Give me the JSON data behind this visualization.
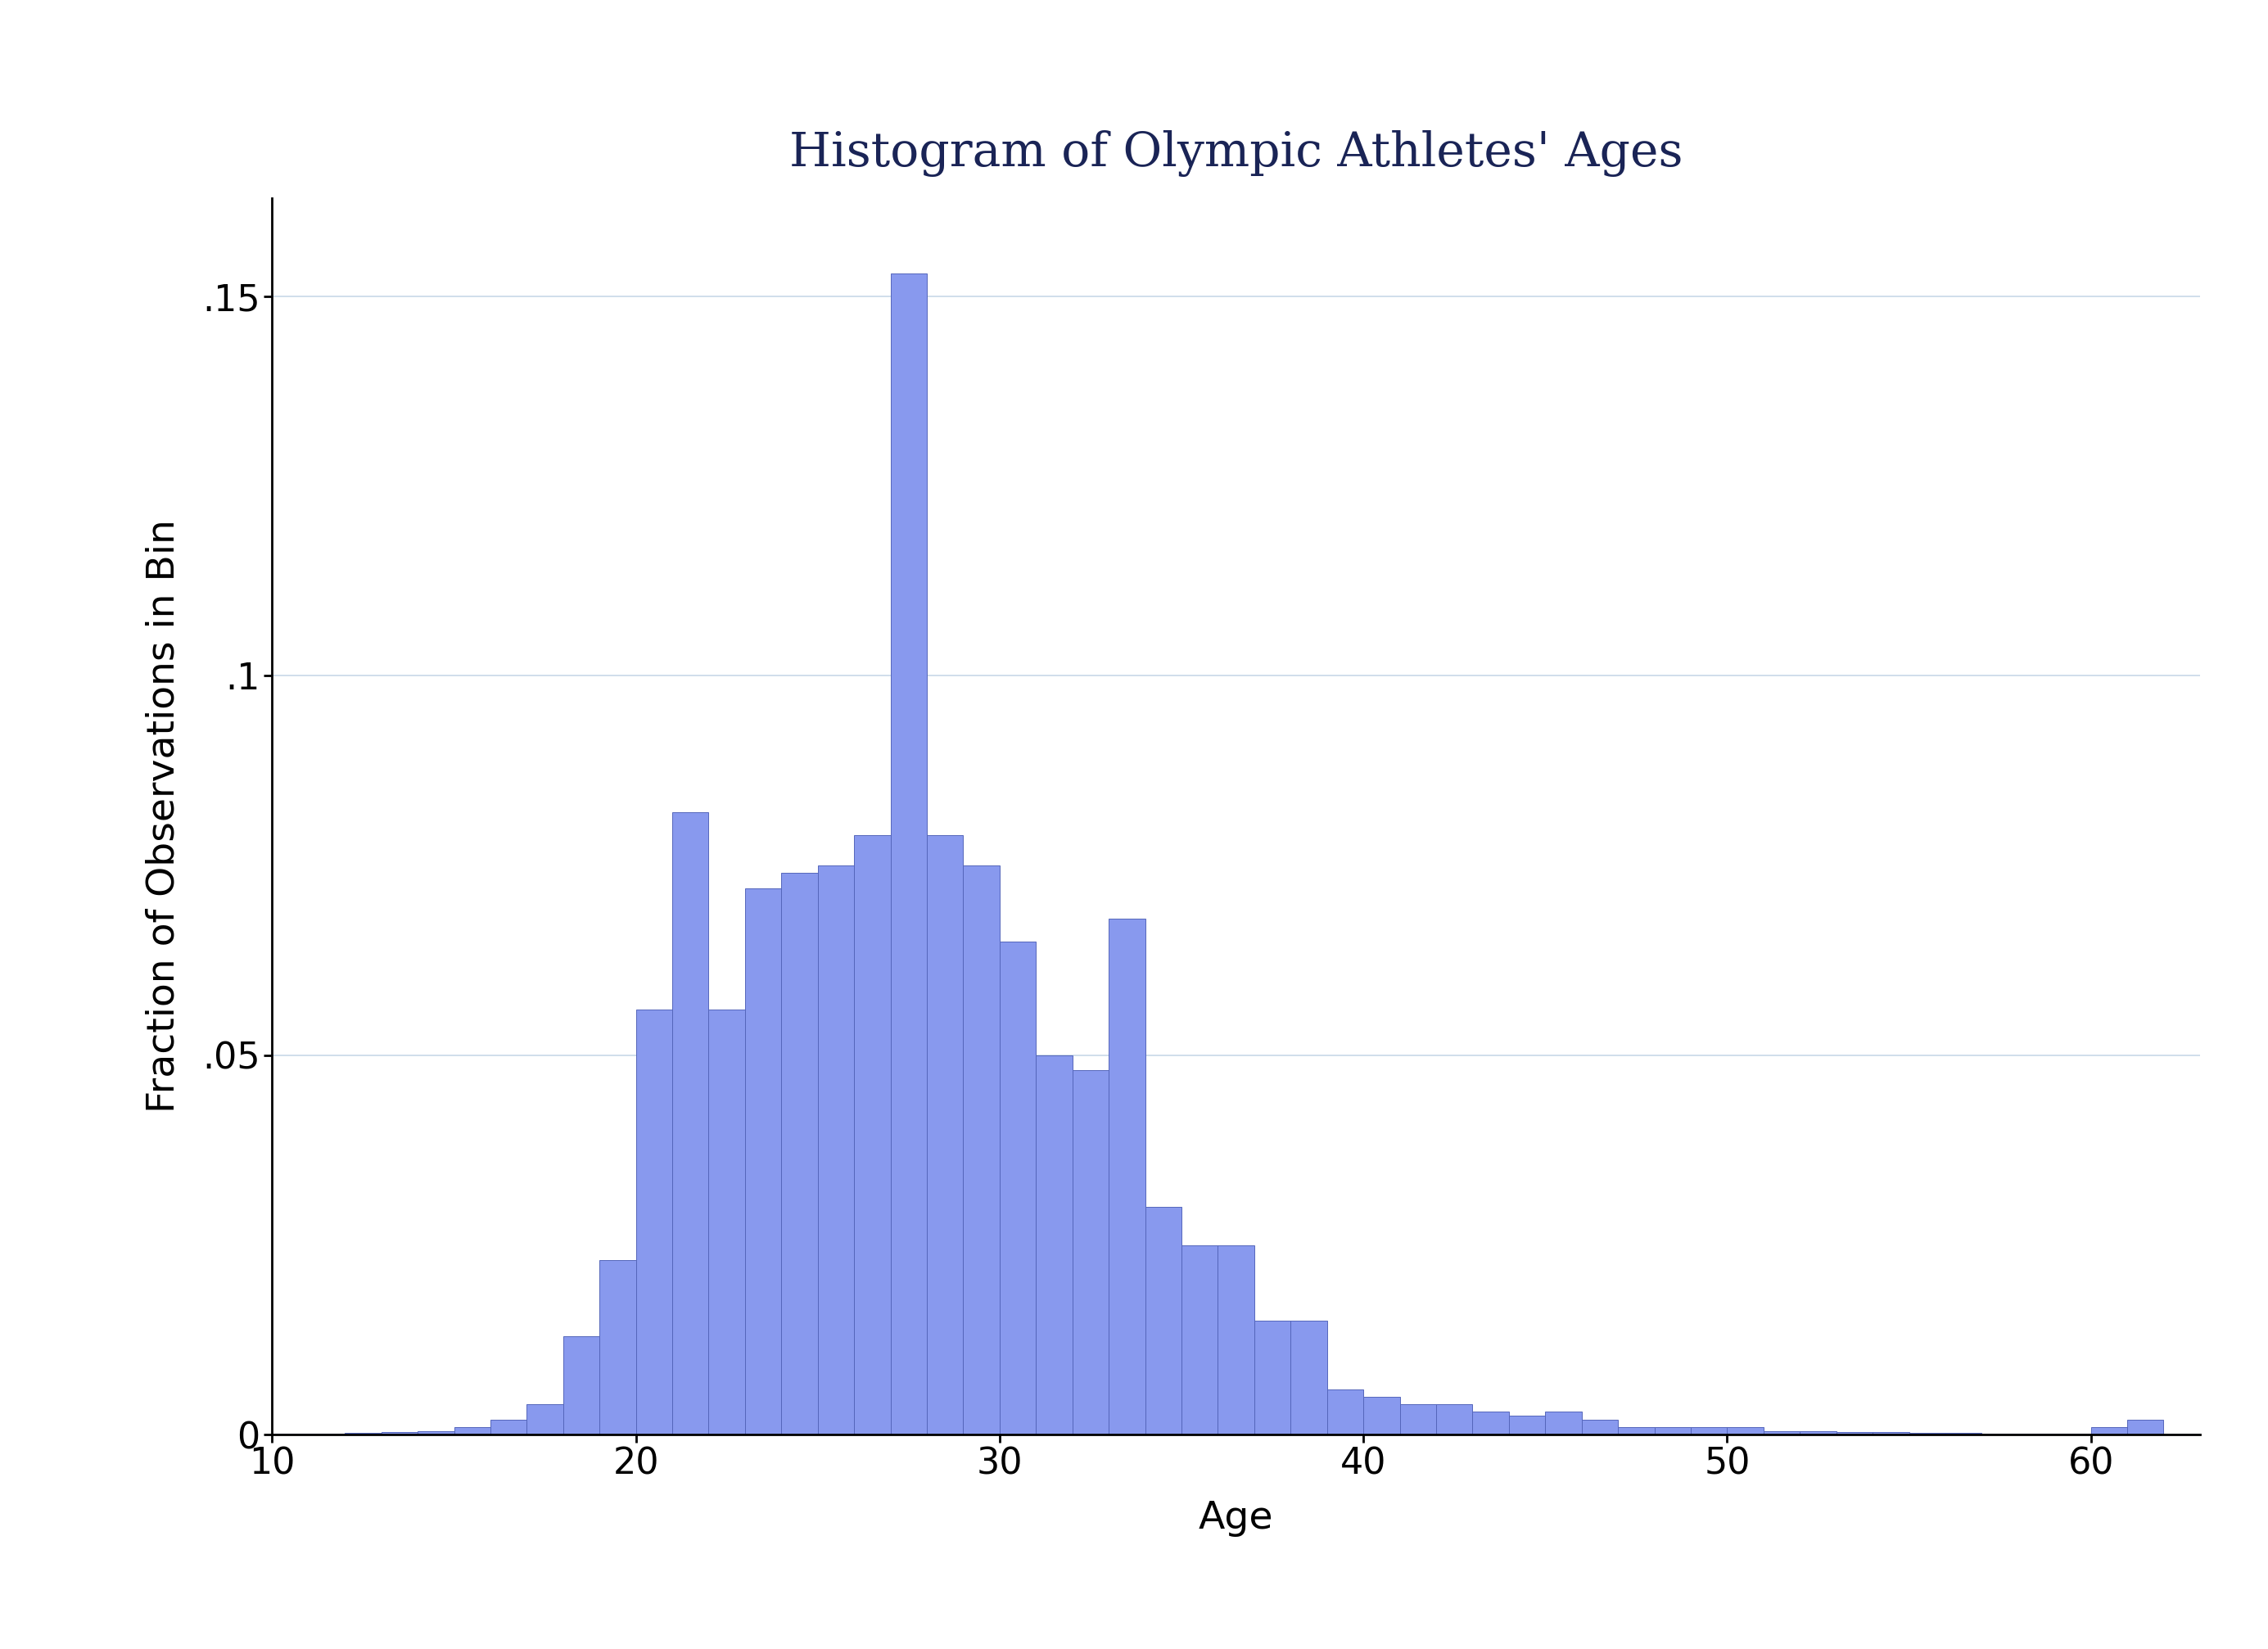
{
  "title": "Histogram of Olympic Athletes' Ages",
  "xlabel": "Age",
  "ylabel": "Fraction of Observations in Bin",
  "title_color": "#1a2456",
  "bar_color": "#8899ee",
  "bar_edge_color": "#5566bb",
  "background_color": "#ffffff",
  "xlim": [
    10,
    63
  ],
  "ylim": [
    0,
    0.163
  ],
  "xticks": [
    10,
    20,
    30,
    40,
    50,
    60
  ],
  "yticks": [
    0,
    0.05,
    0.1,
    0.15
  ],
  "ytick_labels": [
    "0",
    ".05",
    ".1",
    ".15"
  ],
  "grid_color": "#c8d8e8",
  "title_fontsize": 42,
  "label_fontsize": 34,
  "tick_fontsize": 32,
  "bin_starts": [
    10,
    11,
    12,
    13,
    14,
    15,
    16,
    17,
    18,
    19,
    20,
    21,
    22,
    23,
    24,
    25,
    26,
    27,
    28,
    29,
    30,
    31,
    32,
    33,
    34,
    35,
    36,
    37,
    38,
    39,
    40,
    41,
    42,
    43,
    44,
    45,
    46,
    47,
    48,
    49,
    50,
    51,
    52,
    53,
    54,
    55,
    56,
    57,
    58,
    59,
    60,
    61
  ],
  "bin_heights": [
    0.0001,
    0.0001,
    0.0002,
    0.0003,
    0.0005,
    0.001,
    0.002,
    0.004,
    0.013,
    0.023,
    0.056,
    0.082,
    0.056,
    0.072,
    0.074,
    0.075,
    0.079,
    0.153,
    0.079,
    0.075,
    0.065,
    0.05,
    0.048,
    0.068,
    0.03,
    0.025,
    0.025,
    0.015,
    0.015,
    0.006,
    0.005,
    0.004,
    0.004,
    0.003,
    0.0025,
    0.003,
    0.002,
    0.001,
    0.001,
    0.001,
    0.001,
    0.0005,
    0.0005,
    0.0003,
    0.0003,
    0.0002,
    0.0002,
    0.0001,
    0.0001,
    0.0001,
    0.001,
    0.002
  ]
}
